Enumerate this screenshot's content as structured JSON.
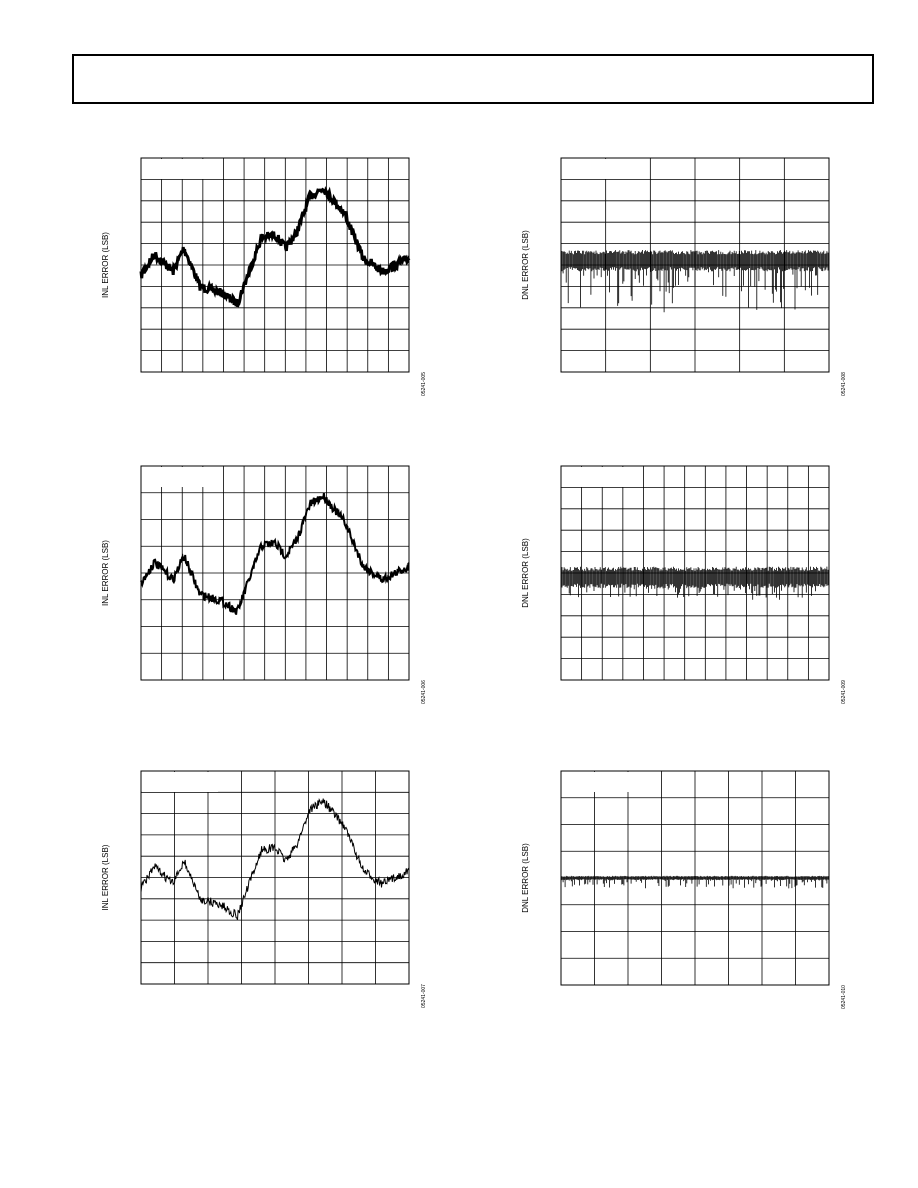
{
  "plots": [
    {
      "y_label": "INL ERROR (LSB)",
      "figure_code": "05241-005"
    },
    {
      "y_label": "DNL ERROR (LSB)",
      "figure_code": "05241-008"
    },
    {
      "y_label": "INL ERROR (LSB)",
      "figure_code": "05241-006"
    },
    {
      "y_label": "DNL ERROR (LSB)",
      "figure_code": "05241-009"
    },
    {
      "y_label": "INL ERROR (LSB)",
      "figure_code": "05241-007"
    },
    {
      "y_label": "DNL ERROR (LSB)",
      "figure_code": "05241-010"
    }
  ]
}
